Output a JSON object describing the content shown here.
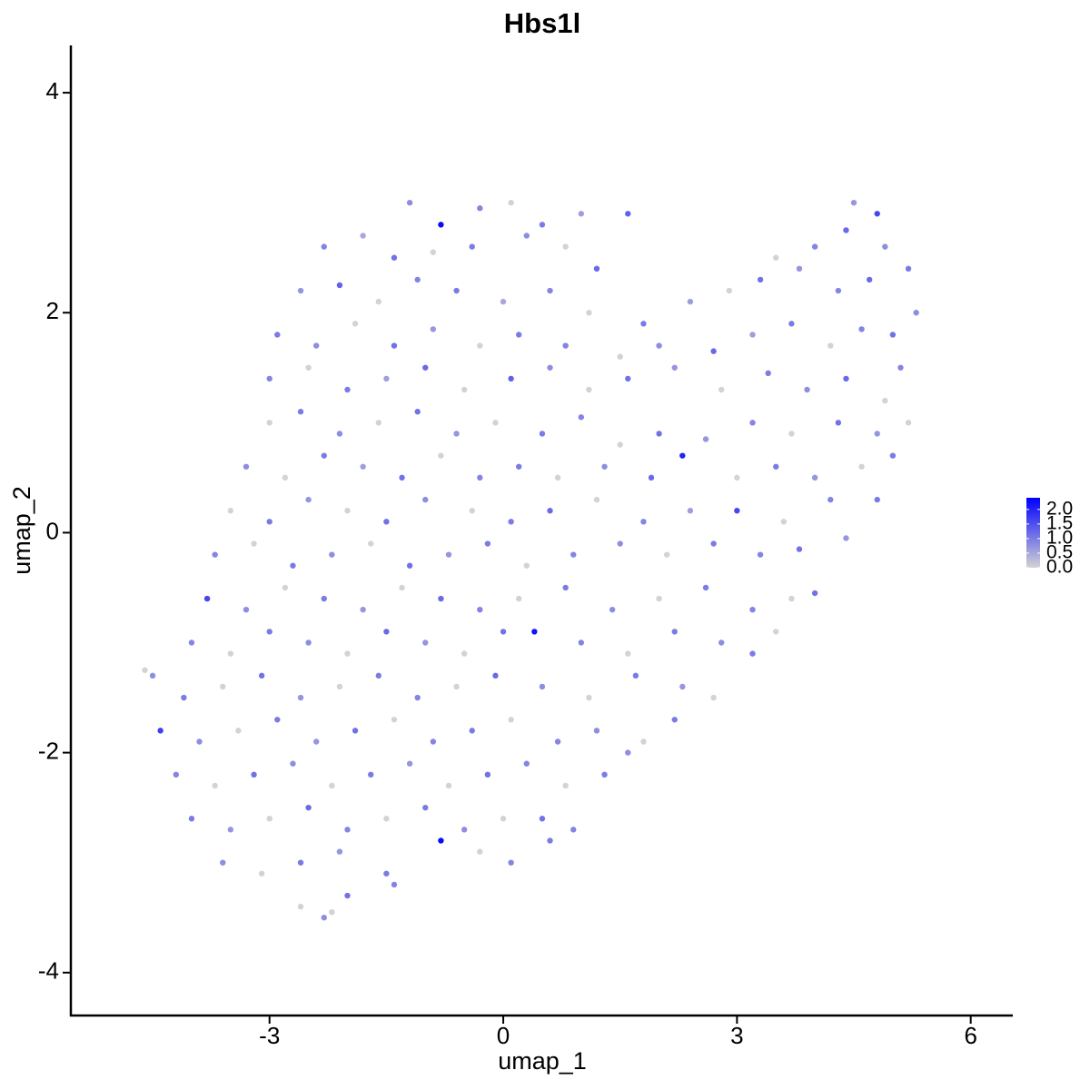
{
  "chart_data": {
    "type": "scatter",
    "title": "Hbs1l",
    "x_label": "umap_1",
    "y_label": "umap_2",
    "xlim": [
      -5.55,
      6.54
    ],
    "ylim": [
      -4.39,
      4.43
    ],
    "xticks": [
      -3,
      0,
      3,
      6
    ],
    "yticks": [
      -4,
      -2,
      0,
      2,
      4
    ],
    "low_color": "#d3d3d3",
    "high_color": "#0000ff",
    "colorlim": [
      0,
      2.4
    ],
    "colorticks": [
      {
        "value": 0,
        "label": "0.0"
      },
      {
        "value": 0.5,
        "label": "0.5"
      },
      {
        "value": 1,
        "label": "1.0"
      },
      {
        "value": 1.5,
        "label": "1.5"
      },
      {
        "value": 2,
        "label": "2.0"
      }
    ],
    "x": [
      -1.2,
      -0.8,
      -0.3,
      0.1,
      0.5,
      1.0,
      1.6,
      4.5,
      4.8,
      -2.3,
      -1.8,
      -1.4,
      -0.9,
      -0.4,
      0.3,
      0.8,
      1.2,
      3.5,
      4.0,
      4.4,
      4.9,
      5.2,
      -2.6,
      -2.1,
      -1.6,
      -1.1,
      -0.6,
      0,
      0.6,
      1.1,
      1.8,
      2.4,
      2.9,
      3.3,
      3.8,
      4.3,
      4.7,
      5.3,
      -2.9,
      -2.4,
      -1.9,
      -1.4,
      -0.9,
      -0.3,
      0.2,
      0.8,
      1.5,
      2.0,
      2.7,
      3.2,
      3.7,
      4.2,
      4.6,
      5.0,
      -3.0,
      -2.5,
      -2.0,
      -1.5,
      -1.0,
      -0.5,
      0.1,
      0.6,
      1.1,
      1.6,
      2.2,
      2.8,
      3.4,
      3.9,
      4.4,
      4.9,
      5.1,
      -3.0,
      -2.6,
      -2.1,
      -1.6,
      -1.1,
      -0.6,
      -0.1,
      0.5,
      1.0,
      1.5,
      2.0,
      2.6,
      3.2,
      3.7,
      4.3,
      4.8,
      5.2,
      -3.3,
      -2.8,
      -2.3,
      -1.8,
      -1.3,
      -0.8,
      -0.3,
      0.2,
      0.7,
      1.3,
      1.9,
      2.3,
      3.0,
      3.5,
      4.0,
      4.6,
      5.0,
      -3.5,
      -3.0,
      -2.5,
      -2.0,
      -1.5,
      -1.0,
      -0.4,
      0.1,
      0.6,
      1.2,
      1.8,
      2.4,
      3.0,
      3.6,
      4.2,
      4.8,
      -3.7,
      -3.2,
      -2.7,
      -2.2,
      -1.7,
      -1.2,
      -0.7,
      -0.2,
      0.3,
      0.9,
      1.5,
      2.1,
      2.7,
      3.3,
      3.8,
      4.4,
      -3.8,
      -3.3,
      -2.8,
      -2.3,
      -1.8,
      -1.3,
      -0.8,
      -0.3,
      0.2,
      0.8,
      1.4,
      2.0,
      2.6,
      3.2,
      3.7,
      4.0,
      -4.0,
      -3.5,
      -3.0,
      -2.5,
      -2.0,
      -1.5,
      -1.0,
      -0.5,
      0.0,
      0.4,
      1.0,
      1.6,
      2.2,
      2.8,
      3.2,
      3.5,
      -4.6,
      -4.5,
      -4.1,
      -3.6,
      -3.1,
      -2.6,
      -2.1,
      -1.6,
      -1.1,
      -0.6,
      -0.1,
      0.5,
      1.1,
      1.7,
      2.3,
      2.7,
      -4.4,
      -3.9,
      -3.4,
      -2.9,
      -2.4,
      -1.9,
      -1.4,
      -0.9,
      -0.4,
      0.1,
      0.7,
      1.2,
      1.8,
      2.2,
      -4.2,
      -3.7,
      -3.2,
      -2.7,
      -2.2,
      -1.7,
      -1.2,
      -0.7,
      -0.2,
      0.3,
      0.8,
      1.3,
      1.6,
      -4.0,
      -3.5,
      -3.0,
      -2.5,
      -2.0,
      -1.5,
      -1.0,
      -0.5,
      0.0,
      0.5,
      0.9,
      -3.6,
      -3.1,
      -2.6,
      -2.1,
      -1.5,
      -0.8,
      -0.3,
      0.1,
      0.6,
      -2.6,
      -2.3,
      -2.0,
      -1.4,
      -2.2
    ],
    "y": [
      3.0,
      2.8,
      2.95,
      3.0,
      2.8,
      2.9,
      2.9,
      3.0,
      2.9,
      2.6,
      2.7,
      2.5,
      2.55,
      2.6,
      2.7,
      2.6,
      2.4,
      2.5,
      2.6,
      2.75,
      2.6,
      2.4,
      2.2,
      2.25,
      2.1,
      2.3,
      2.2,
      2.1,
      2.2,
      2.0,
      1.9,
      2.1,
      2.2,
      2.3,
      2.4,
      2.2,
      2.3,
      2.0,
      1.8,
      1.7,
      1.9,
      1.7,
      1.85,
      1.7,
      1.8,
      1.7,
      1.6,
      1.7,
      1.65,
      1.8,
      1.9,
      1.7,
      1.85,
      1.8,
      1.4,
      1.5,
      1.3,
      1.4,
      1.5,
      1.3,
      1.4,
      1.5,
      1.3,
      1.4,
      1.5,
      1.3,
      1.45,
      1.3,
      1.4,
      1.2,
      1.5,
      1.0,
      1.1,
      0.9,
      1.0,
      1.1,
      0.9,
      1.0,
      0.9,
      1.05,
      0.8,
      0.9,
      0.85,
      1.0,
      0.9,
      1.0,
      0.9,
      1.0,
      0.6,
      0.5,
      0.7,
      0.6,
      0.5,
      0.7,
      0.5,
      0.6,
      0.5,
      0.6,
      0.5,
      0.7,
      0.5,
      0.6,
      0.5,
      0.6,
      0.7,
      0.2,
      0.1,
      0.3,
      0.2,
      0.1,
      0.3,
      0.2,
      0.1,
      0.2,
      0.3,
      0.1,
      0.2,
      0.2,
      0.1,
      0.3,
      0.3,
      -0.2,
      -0.1,
      -0.3,
      -0.2,
      -0.1,
      -0.3,
      -0.2,
      -0.1,
      -0.3,
      -0.2,
      -0.1,
      -0.2,
      -0.1,
      -0.2,
      -0.15,
      -0.05,
      -0.6,
      -0.7,
      -0.5,
      -0.6,
      -0.7,
      -0.5,
      -0.6,
      -0.7,
      -0.6,
      -0.5,
      -0.7,
      -0.6,
      -0.5,
      -0.7,
      -0.6,
      -0.55,
      -1.0,
      -1.1,
      -0.9,
      -1.0,
      -1.1,
      -0.9,
      -1.0,
      -1.1,
      -0.9,
      -0.9,
      -1.0,
      -1.1,
      -0.9,
      -1.0,
      -1.1,
      -0.9,
      -1.25,
      -1.3,
      -1.5,
      -1.4,
      -1.3,
      -1.5,
      -1.4,
      -1.3,
      -1.5,
      -1.4,
      -1.3,
      -1.4,
      -1.5,
      -1.3,
      -1.4,
      -1.5,
      -1.8,
      -1.9,
      -1.8,
      -1.7,
      -1.9,
      -1.8,
      -1.7,
      -1.9,
      -1.8,
      -1.7,
      -1.9,
      -1.8,
      -1.9,
      -1.7,
      -2.2,
      -2.3,
      -2.2,
      -2.1,
      -2.3,
      -2.2,
      -2.1,
      -2.3,
      -2.2,
      -2.1,
      -2.3,
      -2.2,
      -2.0,
      -2.6,
      -2.7,
      -2.6,
      -2.5,
      -2.7,
      -2.6,
      -2.5,
      -2.7,
      -2.6,
      -2.6,
      -2.7,
      -3.0,
      -3.1,
      -3.0,
      -2.9,
      -3.1,
      -2.8,
      -2.9,
      -3.0,
      -2.8,
      -3.4,
      -3.5,
      -3.3,
      -3.2,
      -3.45
    ],
    "values": [
      0.8,
      2.3,
      0.9,
      0,
      1.0,
      0.6,
      1.3,
      0.7,
      1.6,
      0.9,
      0.5,
      1.1,
      0,
      1.0,
      0.8,
      0,
      1.2,
      0,
      0.9,
      1.2,
      0.8,
      1.0,
      0.7,
      1.3,
      0,
      0.9,
      1.0,
      0.5,
      0.9,
      0,
      1.0,
      0.6,
      0,
      1.1,
      0.7,
      0.9,
      1.2,
      0.8,
      1.0,
      0.8,
      0,
      1.1,
      0.7,
      0,
      1.0,
      0.9,
      0,
      0.8,
      1.2,
      0.6,
      1.0,
      0,
      0.9,
      1.1,
      0.9,
      0,
      1.0,
      0.6,
      1.2,
      0,
      1.3,
      0.8,
      0,
      1.1,
      0.7,
      0,
      1.0,
      0.8,
      1.2,
      0,
      0.9,
      0,
      1.0,
      0.8,
      0,
      1.1,
      0.7,
      0,
      1.0,
      0.9,
      0,
      1.1,
      0.7,
      0.9,
      0,
      1.1,
      0.7,
      0,
      0.8,
      0,
      1.0,
      0.6,
      1.1,
      0,
      0.9,
      1.0,
      0,
      0.8,
      1.2,
      2.0,
      0,
      1.0,
      0.7,
      0,
      1.0,
      0,
      1.0,
      0.7,
      0,
      1.1,
      0.8,
      0,
      1.0,
      1.2,
      0,
      0.9,
      0.6,
      1.6,
      0,
      0.9,
      1.0,
      0.9,
      0,
      1.0,
      0.8,
      0,
      1.1,
      0.7,
      1.0,
      0,
      0.9,
      0.8,
      0,
      1.0,
      0.9,
      1.1,
      0.7,
      1.6,
      0.8,
      0,
      1.0,
      0.7,
      0,
      1.2,
      0.9,
      0,
      1.0,
      0.8,
      0,
      1.0,
      0.9,
      0,
      1.1,
      0.9,
      0,
      1.0,
      0.8,
      0,
      1.2,
      0.7,
      0,
      1.1,
      2.2,
      0.9,
      0,
      1.0,
      0.8,
      1.0,
      0,
      0,
      0.8,
      1.0,
      0,
      1.1,
      0.7,
      0,
      1.0,
      0.9,
      0,
      1.2,
      0.8,
      0,
      1.0,
      0.7,
      0,
      1.7,
      0.8,
      0,
      1.0,
      0.7,
      1.1,
      0,
      0.9,
      1.0,
      0,
      0.9,
      0.8,
      0,
      1.0,
      0.9,
      0,
      1.1,
      0.8,
      0,
      1.0,
      0.7,
      0,
      1.1,
      0.9,
      0,
      1.0,
      0.8,
      1.0,
      0.7,
      0,
      1.2,
      0.9,
      0,
      1.0,
      0.8,
      0,
      1.1,
      0.9,
      0.8,
      0,
      1.0,
      0.7,
      1.0,
      2.3,
      0,
      0.9,
      1.0,
      0,
      0.8,
      1.1,
      0.9,
      0
    ]
  }
}
